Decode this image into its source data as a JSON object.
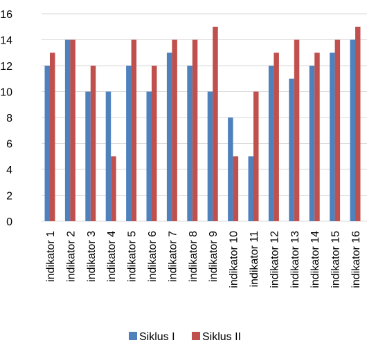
{
  "chart_data": {
    "type": "bar",
    "categories": [
      "indikator 1",
      "indikator 2",
      "indikator 3",
      "indikator 4",
      "indikator 5",
      "indikator 6",
      "indikator 7",
      "indikator 8",
      "indikator 9",
      "indikator 10",
      "indikator 11",
      "indikator 12",
      "indikator 13",
      "indikator 14",
      "indikator 15",
      "indikator 16"
    ],
    "series": [
      {
        "name": "Siklus I",
        "color": "#4f81bd",
        "values": [
          12,
          14,
          10,
          10,
          12,
          10,
          13,
          12,
          10,
          8,
          5,
          12,
          11,
          12,
          13,
          14
        ]
      },
      {
        "name": "Siklus II",
        "color": "#c0504d",
        "values": [
          13,
          14,
          12,
          5,
          14,
          12,
          14,
          14,
          15,
          5,
          10,
          13,
          14,
          13,
          14,
          15
        ]
      }
    ],
    "ylim": [
      0,
      16
    ],
    "yticks": [
      0,
      2,
      4,
      6,
      8,
      10,
      12,
      14,
      16
    ],
    "grid": true,
    "legend_position": "bottom",
    "title": "",
    "xlabel": "",
    "ylabel": ""
  }
}
